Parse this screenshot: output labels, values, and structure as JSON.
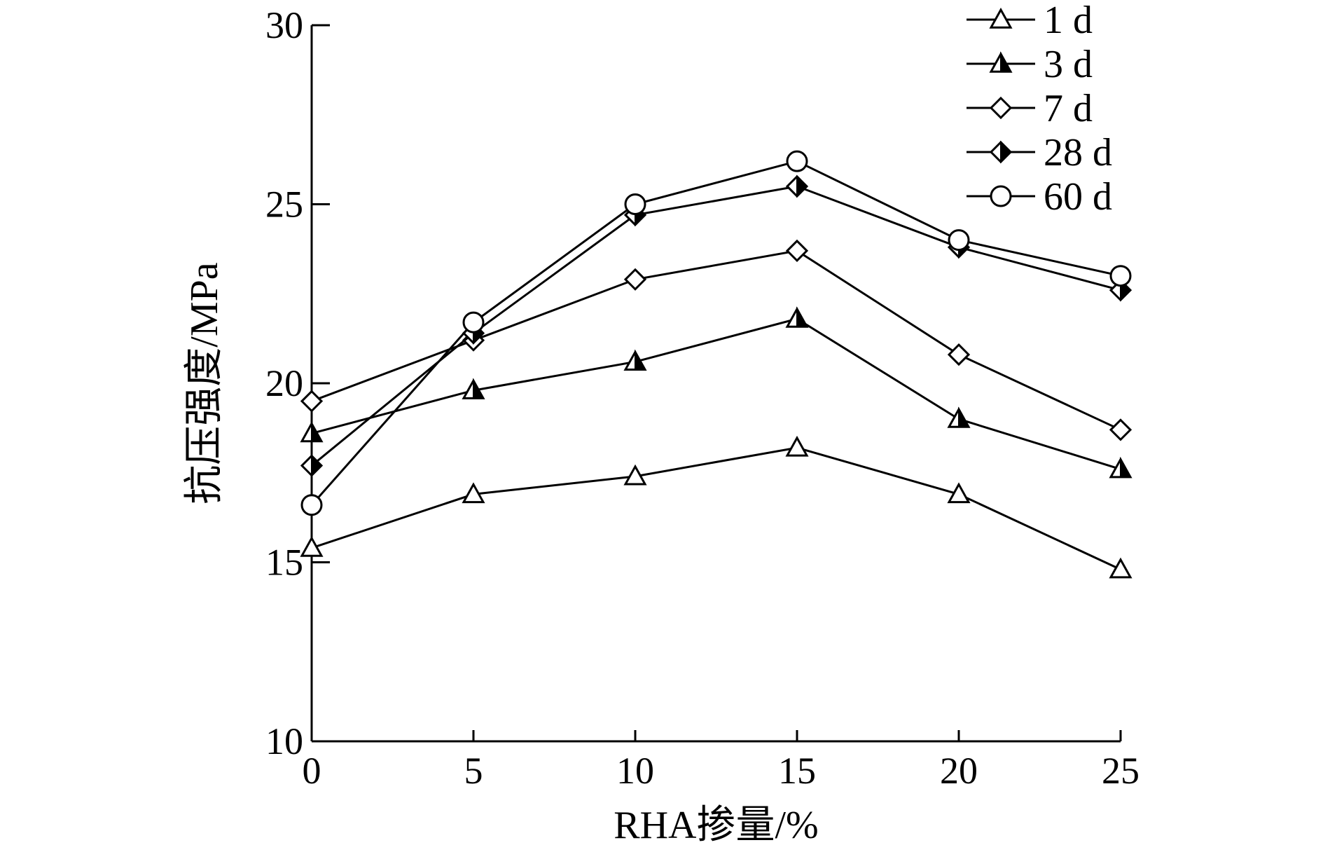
{
  "chart_data": {
    "type": "line",
    "xlabel": "RHA掺量/%",
    "ylabel": "抗压强度/MPa",
    "x": [
      0,
      5,
      10,
      15,
      20,
      25
    ],
    "xticks": [
      "0",
      "5",
      "10",
      "15",
      "20",
      "25"
    ],
    "yticks": [
      "10",
      "15",
      "20",
      "25",
      "30"
    ],
    "xlim": [
      0,
      25
    ],
    "ylim": [
      10,
      30
    ],
    "grid": false,
    "legend_position": "top-right",
    "series": [
      {
        "name": "1 d",
        "marker": "triangle-open",
        "values": [
          15.4,
          16.9,
          17.4,
          18.2,
          16.9,
          14.8
        ]
      },
      {
        "name": "3 d",
        "marker": "triangle-half",
        "values": [
          18.6,
          19.8,
          20.6,
          21.8,
          19.0,
          17.6
        ]
      },
      {
        "name": "7 d",
        "marker": "diamond-open",
        "values": [
          19.5,
          21.2,
          22.9,
          23.7,
          20.8,
          18.7
        ]
      },
      {
        "name": "28 d",
        "marker": "diamond-half",
        "values": [
          17.7,
          21.4,
          24.7,
          25.5,
          23.8,
          22.6
        ]
      },
      {
        "name": "60 d",
        "marker": "circle-open",
        "values": [
          16.6,
          21.7,
          25.0,
          26.2,
          24.0,
          23.0
        ]
      }
    ]
  }
}
